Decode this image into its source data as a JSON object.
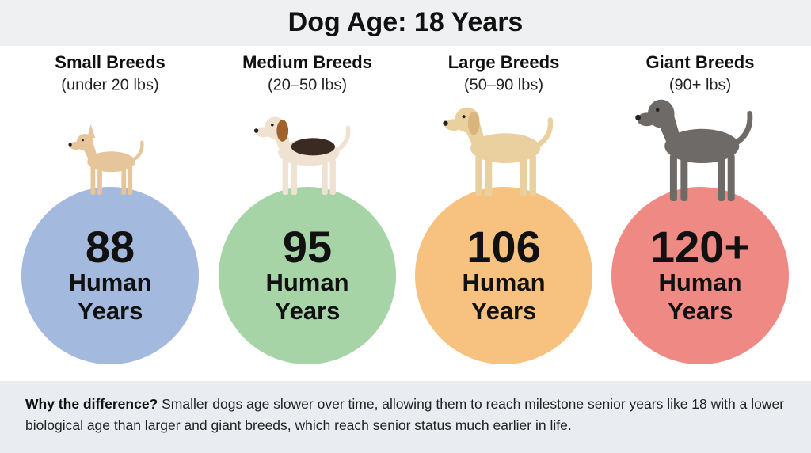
{
  "header": {
    "title": "Dog Age: 18 Years"
  },
  "breeds": [
    {
      "name": "Small Breeds",
      "range": "(under 20 lbs)",
      "age": "88",
      "unit": [
        "Human",
        "Years"
      ]
    },
    {
      "name": "Medium Breeds",
      "range": "(20–50 lbs)",
      "age": "95",
      "unit": [
        "Human",
        "Years"
      ]
    },
    {
      "name": "Large Breeds",
      "range": "(50–90 lbs)",
      "age": "106",
      "unit": [
        "Human",
        "Years"
      ]
    },
    {
      "name": "Giant Breeds",
      "range": "(90+ lbs)",
      "age": "120+",
      "unit": [
        "Human",
        "Years"
      ]
    }
  ],
  "footer": {
    "lead": "Why the difference?",
    "text": "Smaller dogs age slower over time, allowing them to reach milestone senior years like 18 with a lower biological age than larger and giant breeds, which reach senior status much earlier in life."
  }
}
